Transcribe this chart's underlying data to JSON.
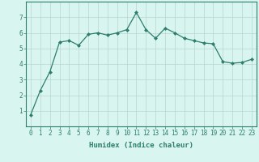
{
  "x": [
    0,
    1,
    2,
    3,
    4,
    5,
    6,
    7,
    8,
    9,
    10,
    11,
    12,
    13,
    14,
    15,
    16,
    17,
    18,
    19,
    20,
    21,
    22,
    23
  ],
  "y": [
    0.75,
    2.3,
    3.5,
    5.4,
    5.5,
    5.2,
    5.9,
    6.0,
    5.85,
    6.0,
    6.2,
    7.3,
    6.2,
    5.65,
    6.3,
    6.0,
    5.65,
    5.5,
    5.35,
    5.3,
    4.15,
    4.05,
    4.1,
    4.3
  ],
  "line_color": "#2e7d6e",
  "marker": "D",
  "markersize": 2,
  "linewidth": 0.9,
  "bg_color": "#d8f5f0",
  "grid_color": "#b8d4cf",
  "xlabel": "Humidex (Indice chaleur)",
  "xlim": [
    -0.5,
    23.5
  ],
  "ylim": [
    0,
    8
  ],
  "yticks": [
    1,
    2,
    3,
    4,
    5,
    6,
    7
  ],
  "xticks": [
    0,
    1,
    2,
    3,
    4,
    5,
    6,
    7,
    8,
    9,
    10,
    11,
    12,
    13,
    14,
    15,
    16,
    17,
    18,
    19,
    20,
    21,
    22,
    23
  ],
  "tick_color": "#2e7d6e",
  "label_color": "#2e7d6e",
  "spine_color": "#2e7d6e",
  "tick_fontsize": 5.5,
  "xlabel_fontsize": 6.5
}
